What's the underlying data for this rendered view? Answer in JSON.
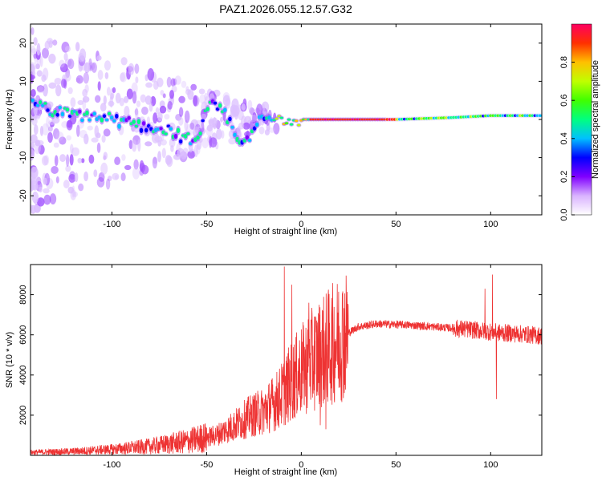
{
  "title": "PAZ1.2026.055.12.57.G32",
  "chart_data": [
    {
      "type": "heatmap",
      "name": "spectrogram",
      "xlabel": "Height of straight line (km)",
      "ylabel": "Frequency (Hz)",
      "xlim": [
        -143,
        127
      ],
      "ylim": [
        -25,
        25
      ],
      "xticks": [
        -100,
        -50,
        0,
        50,
        100
      ],
      "yticks": [
        -20,
        -10,
        0,
        10,
        20
      ],
      "colorbar": {
        "label": "Normalized spectral amplitude",
        "range": [
          0,
          1
        ],
        "ticks": [
          "0.0",
          "0.2",
          "0.4",
          "0.6",
          "0.8"
        ],
        "tick_values": [
          0,
          0.2,
          0.4,
          0.6,
          0.8
        ],
        "colors": [
          "#ffffff",
          "#d9b3ff",
          "#8000ff",
          "#0000ff",
          "#00c0ff",
          "#00ff80",
          "#40ff00",
          "#c0ff00",
          "#ffc000",
          "#ff3000",
          "#ff0060"
        ]
      },
      "ridge": [
        {
          "x": -140,
          "y": 4
        },
        {
          "x": -130,
          "y": 2
        },
        {
          "x": -120,
          "y": 1
        },
        {
          "x": -110,
          "y": 1
        },
        {
          "x": -100,
          "y": 0
        },
        {
          "x": -90,
          "y": -1
        },
        {
          "x": -80,
          "y": -2
        },
        {
          "x": -70,
          "y": -3
        },
        {
          "x": -60,
          "y": -5
        },
        {
          "x": -55,
          "y": -7
        },
        {
          "x": -50,
          "y": 4
        },
        {
          "x": -45,
          "y": 3
        },
        {
          "x": -40,
          "y": 1
        },
        {
          "x": -35,
          "y": -4
        },
        {
          "x": -30,
          "y": -6
        },
        {
          "x": -25,
          "y": -3
        },
        {
          "x": -20,
          "y": 1
        },
        {
          "x": -15,
          "y": 0
        },
        {
          "x": -10,
          "y": 0
        },
        {
          "x": 0,
          "y": 0
        },
        {
          "x": 20,
          "y": 0
        },
        {
          "x": 50,
          "y": 0
        },
        {
          "x": 80,
          "y": 0.5
        },
        {
          "x": 100,
          "y": 1
        },
        {
          "x": 127,
          "y": 1
        }
      ]
    },
    {
      "type": "line",
      "name": "snr",
      "xlabel": "Height of straight line (km)",
      "ylabel": "SNR (10 * v/v)",
      "xlim": [
        -143,
        127
      ],
      "ylim": [
        0,
        9500
      ],
      "xticks": [
        -100,
        -50,
        0,
        50,
        100
      ],
      "yticks": [
        2000,
        4000,
        6000,
        8000
      ],
      "color": "#ee3333",
      "envelope": [
        {
          "x": -143,
          "y": 150
        },
        {
          "x": -120,
          "y": 200
        },
        {
          "x": -100,
          "y": 300
        },
        {
          "x": -80,
          "y": 450
        },
        {
          "x": -60,
          "y": 700
        },
        {
          "x": -45,
          "y": 1000
        },
        {
          "x": -35,
          "y": 1500
        },
        {
          "x": -28,
          "y": 1900
        },
        {
          "x": -20,
          "y": 2200
        },
        {
          "x": -12,
          "y": 2800
        },
        {
          "x": -5,
          "y": 3700
        },
        {
          "x": 0,
          "y": 4200
        },
        {
          "x": 5,
          "y": 4700
        },
        {
          "x": 12,
          "y": 5200
        },
        {
          "x": 20,
          "y": 5800
        },
        {
          "x": 30,
          "y": 6400
        },
        {
          "x": 40,
          "y": 6550
        },
        {
          "x": 55,
          "y": 6500
        },
        {
          "x": 70,
          "y": 6400
        },
        {
          "x": 85,
          "y": 6300
        },
        {
          "x": 95,
          "y": 6200
        },
        {
          "x": 105,
          "y": 6100
        },
        {
          "x": 115,
          "y": 6050
        },
        {
          "x": 127,
          "y": 5950
        }
      ],
      "spikes": [
        {
          "x": -9,
          "y": 9400
        },
        {
          "x": -5,
          "y": 8500
        },
        {
          "x": 4,
          "y": 7600
        },
        {
          "x": 10,
          "y": 1500
        },
        {
          "x": 13,
          "y": 1300
        },
        {
          "x": 97,
          "y": 8300
        },
        {
          "x": 101,
          "y": 9000
        },
        {
          "x": 103,
          "y": 2800
        }
      ]
    }
  ]
}
